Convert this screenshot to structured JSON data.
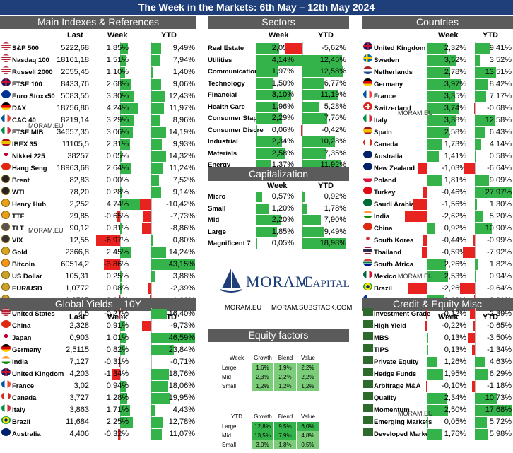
{
  "title": "The Week in the Markets: 6th May – 12th May 2024",
  "watermark": "MORAM.EU",
  "main": {
    "header": "Main Indexes & References",
    "col_last": "Last",
    "col_week": "Week",
    "col_ytd": "YTD",
    "rows": [
      {
        "name": "S&P 500",
        "last": "5222,68",
        "week": "1,85%",
        "ytd": "9,49%",
        "w": 1.85,
        "y": 9.49,
        "icon": "us-flag-icon"
      },
      {
        "name": "Nasdaq 100",
        "last": "18161,18",
        "week": "1,51%",
        "ytd": "7,94%",
        "w": 1.51,
        "y": 7.94,
        "icon": "us-flag-icon"
      },
      {
        "name": "Russell 2000",
        "last": "2055,45",
        "week": "1,10%",
        "ytd": "1,40%",
        "w": 1.1,
        "y": 1.4,
        "icon": "us-flag-icon"
      },
      {
        "name": "FTSE 100",
        "last": "8433,76",
        "week": "2,68%",
        "ytd": "9,06%",
        "w": 2.68,
        "y": 9.06,
        "icon": "uk-flag-icon"
      },
      {
        "name": "Euro Stoxx50",
        "last": "5083,55",
        "week": "3,30%",
        "ytd": "12,43%",
        "w": 3.3,
        "y": 12.43,
        "icon": "eu-flag-icon"
      },
      {
        "name": "DAX",
        "last": "18756,86",
        "week": "4,24%",
        "ytd": "11,97%",
        "w": 4.24,
        "y": 11.97,
        "icon": "germany-flag-icon"
      },
      {
        "name": "CAC 40",
        "last": "8219,14",
        "week": "3,29%",
        "ytd": "8,96%",
        "w": 3.29,
        "y": 8.96,
        "icon": "france-flag-icon"
      },
      {
        "name": "FTSE MIB",
        "last": "34657,35",
        "week": "3,06%",
        "ytd": "14,19%",
        "w": 3.06,
        "y": 14.19,
        "icon": "italy-flag-icon"
      },
      {
        "name": "IBEX 35",
        "last": "11105,5",
        "week": "2,31%",
        "ytd": "9,93%",
        "w": 2.31,
        "y": 9.93,
        "icon": "spain-flag-icon"
      },
      {
        "name": "Nikkei 225",
        "last": "38257",
        "week": "0,05%",
        "ytd": "14,32%",
        "w": 0.05,
        "y": 14.32,
        "icon": "japan-flag-icon"
      },
      {
        "name": "Hang Seng",
        "last": "18963,68",
        "week": "2,64%",
        "ytd": "11,24%",
        "w": 2.64,
        "y": 11.24,
        "icon": "hongkong-flag-icon"
      },
      {
        "name": "Brent",
        "last": "82,83",
        "week": "0,00%",
        "ytd": "7,52%",
        "w": 0,
        "y": 7.52,
        "icon": "oil-barrel-icon"
      },
      {
        "name": "WTI",
        "last": "78,20",
        "week": "0,28%",
        "ytd": "9,14%",
        "w": 0.28,
        "y": 9.14,
        "icon": "oil-barrel-icon"
      },
      {
        "name": "Henry Hub",
        "last": "2,252",
        "week": "4,74%",
        "ytd": "-10,42%",
        "w": 4.74,
        "y": -10.42,
        "icon": "gas-icon"
      },
      {
        "name": "TTF",
        "last": "29,85",
        "week": "-0,65%",
        "ytd": "-7,73%",
        "w": -0.65,
        "y": -7.73,
        "icon": "gas-icon"
      },
      {
        "name": "TLT",
        "last": "90,12",
        "week": "0,31%",
        "ytd": "-8,86%",
        "w": 0.31,
        "y": -8.86,
        "icon": "bond-icon"
      },
      {
        "name": "VIX",
        "last": "12,55",
        "week": "-6,97%",
        "ytd": "0,80%",
        "w": -6.97,
        "y": 0.8,
        "icon": "vix-icon"
      },
      {
        "name": "Gold",
        "last": "2366,8",
        "week": "2,45%",
        "ytd": "14,24%",
        "w": 2.45,
        "y": 14.24,
        "icon": "gold-icon"
      },
      {
        "name": "Bitcoin",
        "last": "60514,2",
        "week": "-3,86%",
        "ytd": "43,15%",
        "w": -3.86,
        "y": 43.15,
        "icon": "bitcoin-icon"
      },
      {
        "name": "US Dollar",
        "last": "105,31",
        "week": "0,25%",
        "ytd": "3,88%",
        "w": 0.25,
        "y": 3.88,
        "icon": "coin-icon"
      },
      {
        "name": "EUR/USD",
        "last": "1,0772",
        "week": "0,08%",
        "ytd": "-2,39%",
        "w": 0.08,
        "y": -2.39,
        "icon": "coin-icon"
      },
      {
        "name": "GBP/USD",
        "last": "1,2525",
        "week": "-0,18%",
        "ytd": "-1,60%",
        "w": -0.18,
        "y": -1.6,
        "icon": "coin-icon"
      }
    ]
  },
  "sectors": {
    "header": "Sectors",
    "col_week": "Week",
    "col_ytd": "YTD",
    "rows": [
      {
        "name": "Real Estate",
        "week": "2,05%",
        "ytd": "-5,62%",
        "w": 2.05,
        "y": -5.62
      },
      {
        "name": "Utilities",
        "week": "4,14%",
        "ytd": "12,45%",
        "w": 4.14,
        "y": 12.45
      },
      {
        "name": "Communication",
        "week": "1,97%",
        "ytd": "12,58%",
        "w": 1.97,
        "y": 12.58
      },
      {
        "name": "Technology",
        "week": "1,50%",
        "ytd": "6,77%",
        "w": 1.5,
        "y": 6.77
      },
      {
        "name": "Financial",
        "week": "3,10%",
        "ytd": "11,19%",
        "w": 3.1,
        "y": 11.19
      },
      {
        "name": "Health Care",
        "week": "1,96%",
        "ytd": "5,28%",
        "w": 1.96,
        "y": 5.28
      },
      {
        "name": "Consumer Staple",
        "week": "2,29%",
        "ytd": "7,76%",
        "w": 2.29,
        "y": 7.76
      },
      {
        "name": "Consumer Discre",
        "week": "0,06%",
        "ytd": "-0,42%",
        "w": 0.06,
        "y": -0.42
      },
      {
        "name": "Industrial",
        "week": "2,34%",
        "ytd": "10,28%",
        "w": 2.34,
        "y": 10.28
      },
      {
        "name": "Materials",
        "week": "2,58%",
        "ytd": "7,35%",
        "w": 2.58,
        "y": 7.35
      },
      {
        "name": "Energy",
        "week": "1,37%",
        "ytd": "11,92%",
        "w": 1.37,
        "y": 11.92
      }
    ]
  },
  "cap": {
    "header": "Capitalization",
    "col_week": "Week",
    "col_ytd": "YTD",
    "rows": [
      {
        "name": "Micro",
        "week": "0,57%",
        "ytd": "0,92%",
        "w": 0.57,
        "y": 0.92
      },
      {
        "name": "Small",
        "week": "1,20%",
        "ytd": "1,78%",
        "w": 1.2,
        "y": 1.78
      },
      {
        "name": "Mid",
        "week": "2,20%",
        "ytd": "7,90%",
        "w": 2.2,
        "y": 7.9
      },
      {
        "name": "Large",
        "week": "1,85%",
        "ytd": "9,49%",
        "w": 1.85,
        "y": 9.49
      },
      {
        "name": "Magnificent 7",
        "week": "0,05%",
        "ytd": "18,98%",
        "w": 0.05,
        "y": 18.98
      }
    ]
  },
  "logo": {
    "name": "MORAM",
    "name2": "Capital",
    "link1": "MORAM.EU",
    "link2": "MORAM.SUBSTACK.COM"
  },
  "eqf": {
    "header": "Equity factors",
    "week": {
      "corner": "Week",
      "cols": [
        "Growth",
        "Blend",
        "Value"
      ],
      "rows": [
        {
          "name": "Large",
          "v": [
            "1,6%",
            "1,9%",
            "2,2%"
          ]
        },
        {
          "name": "Mid",
          "v": [
            "2,3%",
            "2,2%",
            "2,2%"
          ]
        },
        {
          "name": "Small",
          "v": [
            "1,2%",
            "1,2%",
            "1,2%"
          ]
        }
      ]
    },
    "ytd": {
      "corner": "YTD",
      "cols": [
        "Growth",
        "Blend",
        "Value"
      ],
      "rows": [
        {
          "name": "Large",
          "v": [
            "12,8%",
            "9,5%",
            "6,0%"
          ]
        },
        {
          "name": "Mid",
          "v": [
            "13,5%",
            "7,9%",
            "4,8%"
          ]
        },
        {
          "name": "Small",
          "v": [
            "3,0%",
            "1,8%",
            "0,5%"
          ]
        }
      ]
    }
  },
  "countries": {
    "header": "Countries",
    "col_week": "Week",
    "col_ytd": "YTD",
    "rows": [
      {
        "name": "United Kingdom",
        "week": "2,32%",
        "ytd": "9,41%",
        "w": 2.32,
        "y": 9.41,
        "icon": "uk-flag-icon"
      },
      {
        "name": "Sweden",
        "week": "3,52%",
        "ytd": "3,52%",
        "w": 3.52,
        "y": 3.52,
        "icon": "sweden-flag-icon"
      },
      {
        "name": "Netherlands",
        "week": "2,78%",
        "ytd": "13,51%",
        "w": 2.78,
        "y": 13.51,
        "icon": "netherlands-flag-icon"
      },
      {
        "name": "Germany",
        "week": "3,97%",
        "ytd": "8,42%",
        "w": 3.97,
        "y": 8.42,
        "icon": "germany-flag-icon"
      },
      {
        "name": "France",
        "week": "3,35%",
        "ytd": "7,17%",
        "w": 3.35,
        "y": 7.17,
        "icon": "france-flag-icon"
      },
      {
        "name": "Switzerland",
        "week": "3,74%",
        "ytd": "-0,68%",
        "w": 3.74,
        "y": -0.68,
        "icon": "switzerland-flag-icon"
      },
      {
        "name": "Italy",
        "week": "3,38%",
        "ytd": "12,58%",
        "w": 3.38,
        "y": 12.58,
        "icon": "italy-flag-icon"
      },
      {
        "name": "Spain",
        "week": "2,58%",
        "ytd": "6,43%",
        "w": 2.58,
        "y": 6.43,
        "icon": "spain-flag-icon"
      },
      {
        "name": "Canada",
        "week": "1,73%",
        "ytd": "4,14%",
        "w": 1.73,
        "y": 4.14,
        "icon": "canada-flag-icon"
      },
      {
        "name": "Australia",
        "week": "1,41%",
        "ytd": "0,58%",
        "w": 1.41,
        "y": 0.58,
        "icon": "australia-flag-icon"
      },
      {
        "name": "New Zealand",
        "week": "-1,03%",
        "ytd": "-6,64%",
        "w": -1.03,
        "y": -6.64,
        "icon": "newzealand-flag-icon"
      },
      {
        "name": "Poland",
        "week": "1,81%",
        "ytd": "9,09%",
        "w": 1.81,
        "y": 9.09,
        "icon": "poland-flag-icon"
      },
      {
        "name": "Turkey",
        "week": "-0,46%",
        "ytd": "27,97%",
        "w": -0.46,
        "y": 27.97,
        "icon": "turkey-flag-icon"
      },
      {
        "name": "Saudi Arabia",
        "week": "-1,56%",
        "ytd": "1,30%",
        "w": -1.56,
        "y": 1.3,
        "icon": "saudi-flag-icon"
      },
      {
        "name": "India",
        "week": "-2,62%",
        "ytd": "5,20%",
        "w": -2.62,
        "y": 5.2,
        "icon": "india-flag-icon"
      },
      {
        "name": "China",
        "week": "0,92%",
        "ytd": "10,90%",
        "w": 0.92,
        "y": 10.9,
        "icon": "china-flag-icon"
      },
      {
        "name": "South Korea",
        "week": "-0,44%",
        "ytd": "-0,99%",
        "w": -0.44,
        "y": -0.99,
        "icon": "southkorea-flag-icon"
      },
      {
        "name": "Thailand",
        "week": "-0,59%",
        "ytd": "-7,92%",
        "w": -0.59,
        "y": -7.92,
        "icon": "thailand-flag-icon"
      },
      {
        "name": "South Africa",
        "week": "2,26%",
        "ytd": "1,82%",
        "w": 2.26,
        "y": 1.82,
        "icon": "southafrica-flag-icon"
      },
      {
        "name": "Mexico",
        "week": "2,53%",
        "ytd": "0,94%",
        "w": 2.53,
        "y": 0.94,
        "icon": "mexico-flag-icon"
      },
      {
        "name": "Brazil",
        "week": "-2,26%",
        "ytd": "-9,64%",
        "w": -2.26,
        "y": -9.64,
        "icon": "brazil-flag-icon"
      },
      {
        "name": "Chile",
        "week": "2,10%",
        "ytd": "-0,21%",
        "w": 2.1,
        "y": -0.21,
        "icon": "chile-flag-icon"
      }
    ]
  },
  "yields": {
    "header": "Global Yields – 10Y",
    "col_last": "Last",
    "col_week": "Week",
    "col_ytd": "YTD",
    "rows": [
      {
        "name": "United States",
        "last": "4,5",
        "week": "-0,27%",
        "ytd": "16,40%",
        "w": -0.27,
        "y": 16.4,
        "icon": "us-flag-icon"
      },
      {
        "name": "China",
        "last": "2,328",
        "week": "0,91%",
        "ytd": "-9,73%",
        "w": 0.91,
        "y": -9.73,
        "icon": "china-flag-icon"
      },
      {
        "name": "Japan",
        "last": "0,903",
        "week": "1,01%",
        "ytd": "46,59%",
        "w": 1.01,
        "y": 46.59,
        "icon": "japan-flag-icon"
      },
      {
        "name": "Germany",
        "last": "2,5115",
        "week": "0,82%",
        "ytd": "23,84%",
        "w": 0.82,
        "y": 23.84,
        "icon": "germany-flag-icon"
      },
      {
        "name": "India",
        "last": "7,127",
        "week": "-0,31%",
        "ytd": "-0,71%",
        "w": -0.31,
        "y": -0.71,
        "icon": "india-flag-icon"
      },
      {
        "name": "United Kingdom",
        "last": "4,203",
        "week": "-1,34%",
        "ytd": "18,76%",
        "w": -1.34,
        "y": 18.76,
        "icon": "uk-flag-icon"
      },
      {
        "name": "France",
        "last": "3,02",
        "week": "0,94%",
        "ytd": "18,06%",
        "w": 0.94,
        "y": 18.06,
        "icon": "france-flag-icon"
      },
      {
        "name": "Canada",
        "last": "3,727",
        "week": "1,28%",
        "ytd": "19,95%",
        "w": 1.28,
        "y": 19.95,
        "icon": "canada-flag-icon"
      },
      {
        "name": "Italy",
        "last": "3,863",
        "week": "1,71%",
        "ytd": "4,43%",
        "w": 1.71,
        "y": 4.43,
        "icon": "italy-flag-icon"
      },
      {
        "name": "Brazil",
        "last": "11,684",
        "week": "2,25%",
        "ytd": "12,78%",
        "w": 2.25,
        "y": 12.78,
        "icon": "brazil-flag-icon"
      },
      {
        "name": "Australia",
        "last": "4,406",
        "week": "-0,32%",
        "ytd": "11,07%",
        "w": -0.32,
        "y": 11.07,
        "icon": "australia-flag-icon"
      }
    ]
  },
  "credit": {
    "header": "Credit & Equity Misc",
    "col_week": "Week",
    "col_ytd": "YTD",
    "rows": [
      {
        "name": "Investment Grade",
        "week": "-0,12%",
        "ytd": "-2,39%",
        "w": -0.12,
        "y": -2.39
      },
      {
        "name": "High Yield",
        "week": "-0,22%",
        "ytd": "-0,65%",
        "w": -0.22,
        "y": -0.65
      },
      {
        "name": "MBS",
        "week": "0,13%",
        "ytd": "-3,50%",
        "w": 0.13,
        "y": -3.5
      },
      {
        "name": "TIPS",
        "week": "0,13%",
        "ytd": "-1,34%",
        "w": 0.13,
        "y": -1.34
      },
      {
        "name": "Private Equity",
        "week": "1,26%",
        "ytd": "4,63%",
        "w": 1.26,
        "y": 4.63
      },
      {
        "name": "Hedge Funds",
        "week": "1,95%",
        "ytd": "6,29%",
        "w": 1.95,
        "y": 6.29
      },
      {
        "name": "Arbitrage M&A",
        "week": "-0,10%",
        "ytd": "-1,18%",
        "w": -0.1,
        "y": -1.18
      },
      {
        "name": "Quality",
        "week": "2,34%",
        "ytd": "10,73%",
        "w": 2.34,
        "y": 10.73
      },
      {
        "name": "Momentum",
        "week": "2,50%",
        "ytd": "17,68%",
        "w": 2.5,
        "y": 17.68
      },
      {
        "name": "Emerging Markets",
        "week": "0,05%",
        "ytd": "5,72%",
        "w": 0.05,
        "y": 5.72
      },
      {
        "name": "Developed Market",
        "week": "1,76%",
        "ytd": "5,98%",
        "w": 1.76,
        "y": 5.98
      }
    ]
  },
  "colors": {
    "positive": "#33b34a",
    "negative": "#e8231f",
    "header_bg": "#5b5b5b",
    "title_bg": "#1f3f7a"
  }
}
